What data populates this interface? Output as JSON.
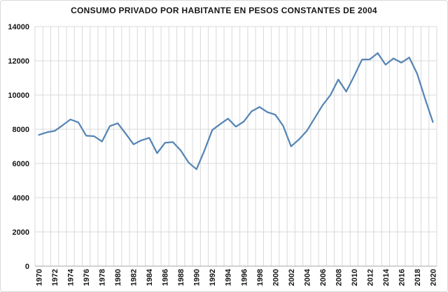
{
  "chart": {
    "title": "CONSUMO PRIVADO POR HABITANTE EN PESOS CONSTANTES DE 2004",
    "colors": {
      "line": "#5585b5",
      "grid": "#d9d9d9",
      "axis": "#a6a6a6",
      "text": "#151515",
      "background": "#ffffff"
    }
  },
  "chart_data": {
    "type": "line",
    "title": "CONSUMO PRIVADO POR HABITANTE EN PESOS CONSTANTES DE 2004",
    "xlabel": "",
    "ylabel": "",
    "ylim": [
      0,
      14000
    ],
    "y_ticks": [
      0,
      2000,
      4000,
      6000,
      8000,
      10000,
      12000,
      14000
    ],
    "grid": "both",
    "legend": "none",
    "x": [
      1970,
      1971,
      1972,
      1973,
      1974,
      1975,
      1976,
      1977,
      1978,
      1979,
      1980,
      1981,
      1982,
      1983,
      1984,
      1985,
      1986,
      1987,
      1988,
      1989,
      1990,
      1991,
      1992,
      1993,
      1994,
      1995,
      1996,
      1997,
      1998,
      1999,
      2000,
      2001,
      2002,
      2003,
      2004,
      2005,
      2006,
      2007,
      2008,
      2009,
      2010,
      2011,
      2012,
      2013,
      2014,
      2015,
      2016,
      2017,
      2018,
      2019,
      2020
    ],
    "x_tick_labels": [
      "1970",
      "1972",
      "1974",
      "1976",
      "1978",
      "1980",
      "1982",
      "1984",
      "1986",
      "1988",
      "1990",
      "1992",
      "1994",
      "1996",
      "1998",
      "2000",
      "2002",
      "2004",
      "2006",
      "2008",
      "2010",
      "2012",
      "2014",
      "2016",
      "2018",
      "2020"
    ],
    "values": [
      7670,
      7820,
      7900,
      8230,
      8570,
      8400,
      7620,
      7590,
      7280,
      8180,
      8350,
      7750,
      7120,
      7350,
      7500,
      6600,
      7210,
      7250,
      6760,
      6050,
      5660,
      6750,
      7950,
      8300,
      8620,
      8150,
      8450,
      9050,
      9300,
      9000,
      8850,
      8200,
      7000,
      7400,
      7900,
      8650,
      9400,
      10000,
      10900,
      10200,
      11100,
      12070,
      12080,
      12450,
      11770,
      12140,
      11890,
      12190,
      11250,
      9800,
      8420
    ]
  }
}
